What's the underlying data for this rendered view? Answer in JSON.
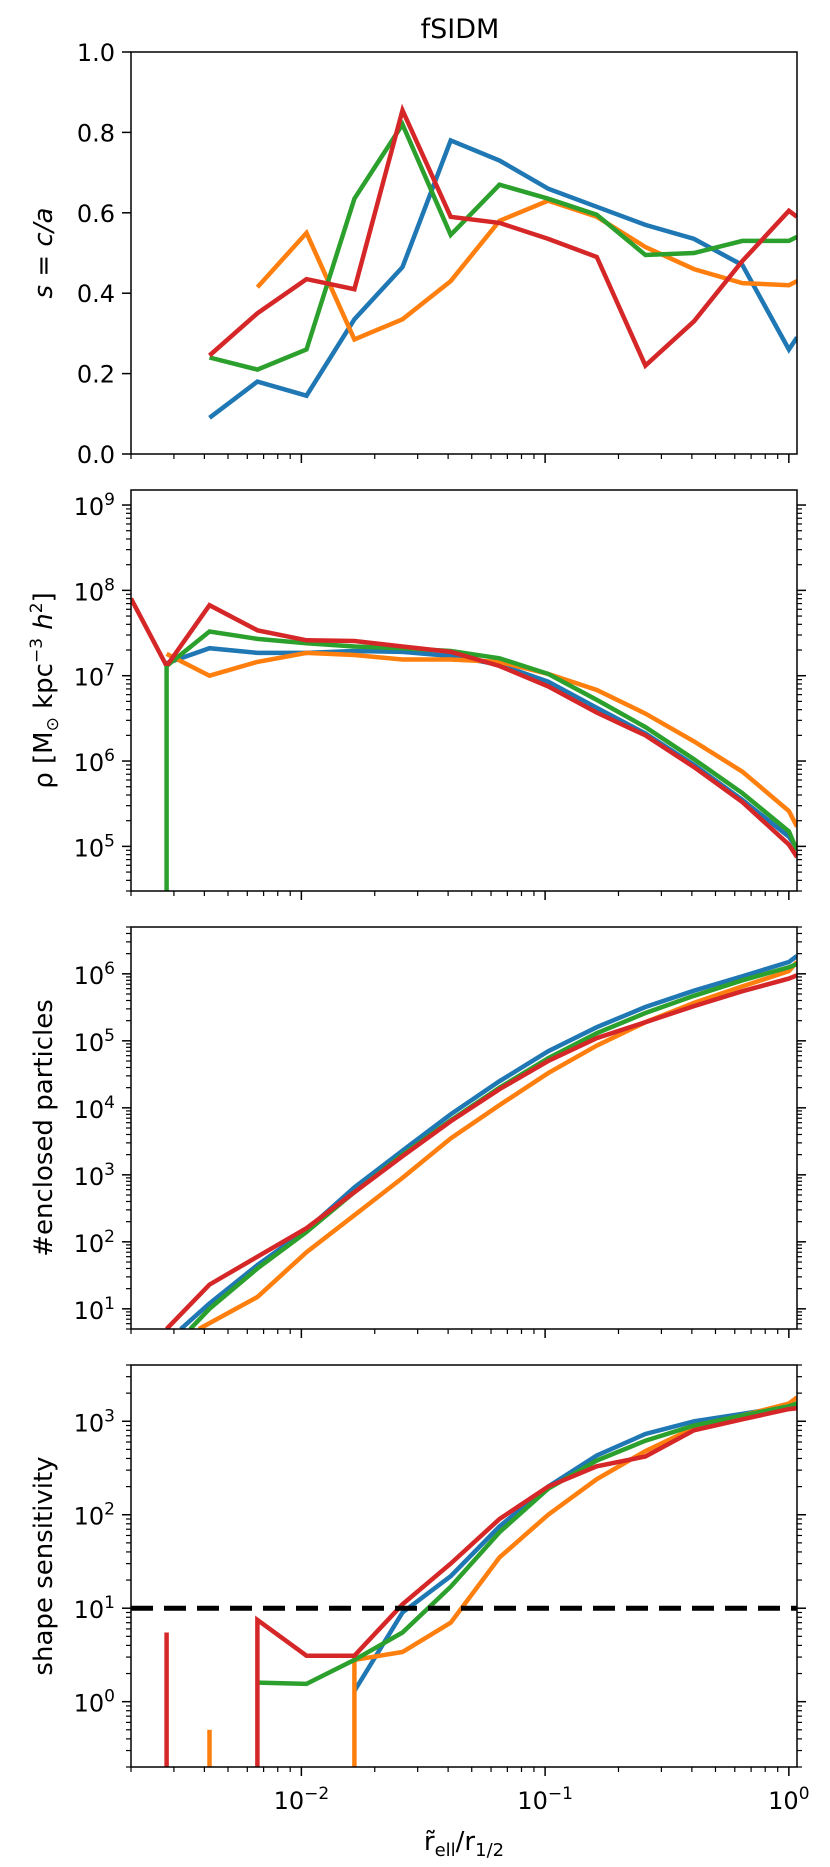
{
  "figure": {
    "title": "fSIDM",
    "xlabel_main": "r̃",
    "xlabel_sub": "ell",
    "xlabel_rest": "/r",
    "xlabel_rest_sub": "1/2",
    "xaxis": {
      "scale": "log",
      "lim": [
        0.002,
        1.08
      ],
      "major_ticks": [
        0.01,
        0.1,
        1
      ],
      "tick_base": [
        "10",
        "10",
        "10"
      ],
      "tick_exp": [
        "−2",
        "−1",
        "0"
      ]
    },
    "colors": {
      "blue": "#1f77b4",
      "orange": "#ff7f0e",
      "green": "#2ca02c",
      "red": "#d62728",
      "threshold": "#000000"
    }
  },
  "chart_data": [
    {
      "type": "line",
      "panel": "shape",
      "ylabel_parts": [
        "s = ",
        "c/a"
      ],
      "yscale": "linear",
      "ylim": [
        0,
        1
      ],
      "yticks": [
        0.0,
        0.2,
        0.4,
        0.6,
        0.8,
        1.0
      ],
      "ytick_labels": [
        "0.0",
        "0.2",
        "0.4",
        "0.6",
        "0.8",
        "1.0"
      ],
      "series": [
        {
          "color": "blue",
          "x": [
            0.0042,
            0.0066,
            0.0105,
            0.0165,
            0.026,
            0.041,
            0.065,
            0.103,
            0.163,
            0.258,
            0.408,
            0.645,
            1.0,
            1.08
          ],
          "y": [
            0.09,
            0.18,
            0.145,
            0.335,
            0.465,
            0.78,
            0.73,
            0.66,
            0.615,
            0.57,
            0.535,
            0.47,
            0.26,
            0.29
          ]
        },
        {
          "color": "orange",
          "x": [
            0.0066,
            0.0105,
            0.0165,
            0.026,
            0.041,
            0.065,
            0.103,
            0.163,
            0.258,
            0.408,
            0.645,
            1.0,
            1.08
          ],
          "y": [
            0.415,
            0.55,
            0.285,
            0.335,
            0.43,
            0.58,
            0.63,
            0.59,
            0.515,
            0.46,
            0.425,
            0.42,
            0.43
          ]
        },
        {
          "color": "green",
          "x": [
            0.0042,
            0.0066,
            0.0105,
            0.0165,
            0.026,
            0.041,
            0.065,
            0.103,
            0.163,
            0.258,
            0.408,
            0.645,
            1.0,
            1.08
          ],
          "y": [
            0.24,
            0.21,
            0.26,
            0.635,
            0.82,
            0.545,
            0.67,
            0.635,
            0.595,
            0.495,
            0.5,
            0.53,
            0.53,
            0.54
          ]
        },
        {
          "color": "red",
          "x": [
            0.0042,
            0.0066,
            0.0105,
            0.0165,
            0.026,
            0.041,
            0.065,
            0.103,
            0.163,
            0.258,
            0.408,
            0.645,
            1.0,
            1.08
          ],
          "y": [
            0.245,
            0.35,
            0.435,
            0.41,
            0.855,
            0.59,
            0.575,
            0.535,
            0.49,
            0.22,
            0.33,
            0.48,
            0.605,
            0.59
          ]
        }
      ]
    },
    {
      "type": "line",
      "panel": "density",
      "ylabel_parts": [
        "ρ [M",
        "⊙",
        " kpc",
        "−3",
        " h",
        "2",
        "]"
      ],
      "yscale": "log",
      "ylim": [
        30000,
        1500000000
      ],
      "yticks": [
        100000,
        1000000,
        10000000,
        100000000,
        1000000000
      ],
      "ytick_base": [
        "10",
        "10",
        "10",
        "10",
        "10"
      ],
      "ytick_exp": [
        "5",
        "6",
        "7",
        "8",
        "9"
      ],
      "series": [
        {
          "color": "blue",
          "x": [
            0.0028,
            0.0042,
            0.0066,
            0.0105,
            0.0165,
            0.026,
            0.041,
            0.065,
            0.103,
            0.163,
            0.258,
            0.408,
            0.645,
            1.0,
            1.08
          ],
          "y": [
            14000000,
            21000000,
            18500000,
            18500000,
            19500000,
            19000000,
            17000000,
            13500000,
            8500000,
            4200000,
            2100000,
            900000,
            350000,
            130000,
            95000
          ]
        },
        {
          "color": "orange",
          "x": [
            0.0028,
            0.0042,
            0.0066,
            0.0105,
            0.0165,
            0.026,
            0.041,
            0.065,
            0.103,
            0.163,
            0.258,
            0.408,
            0.645,
            1.0,
            1.08
          ],
          "y": [
            18000000,
            10000000,
            14500000,
            18500000,
            17500000,
            15500000,
            15500000,
            14500000,
            10500000,
            6800000,
            3600000,
            1700000,
            750000,
            260000,
            170000
          ]
        },
        {
          "color": "green",
          "x": [
            0.0028,
            0.0042,
            0.0066,
            0.0105,
            0.0165,
            0.026,
            0.041,
            0.065,
            0.103,
            0.163,
            0.258,
            0.408,
            0.645,
            1.0,
            1.08
          ],
          "y": [
            13000000,
            33000000,
            27000000,
            24000000,
            22000000,
            21000000,
            19500000,
            16000000,
            10500000,
            5200000,
            2500000,
            1050000,
            420000,
            150000,
            90000
          ]
        },
        {
          "color": "red",
          "x": [
            0.002,
            0.0028,
            0.0042,
            0.0066,
            0.0105,
            0.0165,
            0.026,
            0.041,
            0.065,
            0.103,
            0.163,
            0.258,
            0.408,
            0.645,
            1.0,
            1.08
          ],
          "y": [
            80000000,
            13000000,
            67000000,
            34000000,
            26000000,
            25500000,
            22000000,
            19000000,
            13000000,
            7500000,
            3700000,
            2000000,
            850000,
            330000,
            105000,
            75000
          ]
        },
        {
          "color": "green",
          "x": [
            0.0028,
            0.0028
          ],
          "y": [
            13000000,
            30000
          ]
        }
      ]
    },
    {
      "type": "line",
      "panel": "enclosed",
      "ylabel": "#enclosed particles",
      "yscale": "log",
      "ylim": [
        5,
        5000000
      ],
      "yticks": [
        10,
        100,
        1000,
        10000,
        100000,
        1000000
      ],
      "ytick_base": [
        "10",
        "10",
        "10",
        "10",
        "10",
        "10"
      ],
      "ytick_exp": [
        "1",
        "2",
        "3",
        "4",
        "5",
        "6"
      ],
      "series": [
        {
          "color": "blue",
          "x": [
            0.0032,
            0.0042,
            0.0066,
            0.0105,
            0.0165,
            0.026,
            0.041,
            0.065,
            0.103,
            0.163,
            0.258,
            0.408,
            0.645,
            1.0,
            1.08
          ],
          "y": [
            5,
            12,
            45,
            150,
            650,
            2300,
            8000,
            25000,
            70000,
            160000,
            320000,
            560000,
            920000,
            1500000,
            1850000
          ]
        },
        {
          "color": "orange",
          "x": [
            0.0038,
            0.0066,
            0.0105,
            0.0165,
            0.026,
            0.041,
            0.065,
            0.103,
            0.163,
            0.258,
            0.408,
            0.645,
            1.0,
            1.08
          ],
          "y": [
            5,
            15,
            70,
            250,
            900,
            3500,
            11000,
            33000,
            85000,
            190000,
            370000,
            650000,
            1100000,
            1500000
          ]
        },
        {
          "color": "green",
          "x": [
            0.0035,
            0.0042,
            0.0066,
            0.0105,
            0.0165,
            0.026,
            0.041,
            0.065,
            0.103,
            0.163,
            0.258,
            0.408,
            0.645,
            1.0,
            1.08
          ],
          "y": [
            5,
            10,
            40,
            140,
            550,
            2000,
            6500,
            20000,
            55000,
            130000,
            260000,
            470000,
            800000,
            1250000,
            1400000
          ]
        },
        {
          "color": "red",
          "x": [
            0.0028,
            0.0042,
            0.0066,
            0.0105,
            0.0165,
            0.026,
            0.041,
            0.065,
            0.103,
            0.163,
            0.258,
            0.408,
            0.645,
            1.0,
            1.08
          ],
          "y": [
            5,
            23,
            60,
            160,
            550,
            1900,
            6300,
            19000,
            50000,
            110000,
            190000,
            330000,
            550000,
            850000,
            950000
          ]
        }
      ]
    },
    {
      "type": "line",
      "panel": "sensitivity",
      "ylabel": "shape sensitivity",
      "yscale": "log",
      "ylim": [
        0.2,
        4000
      ],
      "yticks": [
        1,
        10,
        100,
        1000
      ],
      "ytick_base": [
        "10",
        "10",
        "10",
        "10"
      ],
      "ytick_exp": [
        "0",
        "1",
        "2",
        "3"
      ],
      "threshold": 10,
      "series": [
        {
          "color": "blue",
          "x": [
            0.0165,
            0.026,
            0.041,
            0.065,
            0.103,
            0.163,
            0.258,
            0.408,
            0.645,
            1.0,
            1.08
          ],
          "y": [
            1.3,
            9,
            22,
            75,
            200,
            430,
            730,
            1000,
            1200,
            1450,
            1500
          ]
        },
        {
          "color": "orange",
          "x": [
            0.0042,
            0.0042
          ],
          "y": [
            0.2,
            0.5
          ]
        },
        {
          "color": "orange",
          "x": [
            0.0165,
            0.0165,
            0.026,
            0.041,
            0.065,
            0.103,
            0.163,
            0.258,
            0.408,
            0.645,
            1.0,
            1.08
          ],
          "y": [
            0.2,
            2.8,
            3.4,
            7,
            35,
            100,
            240,
            480,
            850,
            1150,
            1550,
            1800
          ]
        },
        {
          "color": "green",
          "x": [
            0.0066,
            0.0105,
            0.0165,
            0.026,
            0.041,
            0.065,
            0.103,
            0.163,
            0.258,
            0.408,
            0.645,
            1.0,
            1.08
          ],
          "y": [
            1.6,
            1.55,
            2.8,
            5.5,
            17,
            65,
            190,
            380,
            620,
            900,
            1150,
            1450,
            1550
          ]
        },
        {
          "color": "red",
          "x": [
            0.0028,
            0.0028
          ],
          "y": [
            0.2,
            5.5
          ]
        },
        {
          "color": "red",
          "x": [
            0.0066,
            0.0066,
            0.0105,
            0.0165,
            0.026,
            0.041,
            0.065,
            0.103,
            0.163,
            0.258,
            0.408,
            0.645,
            1.0,
            1.08
          ],
          "y": [
            0.2,
            7.5,
            3.1,
            3.1,
            11,
            30,
            90,
            200,
            330,
            420,
            800,
            1050,
            1350,
            1380
          ]
        }
      ]
    }
  ]
}
